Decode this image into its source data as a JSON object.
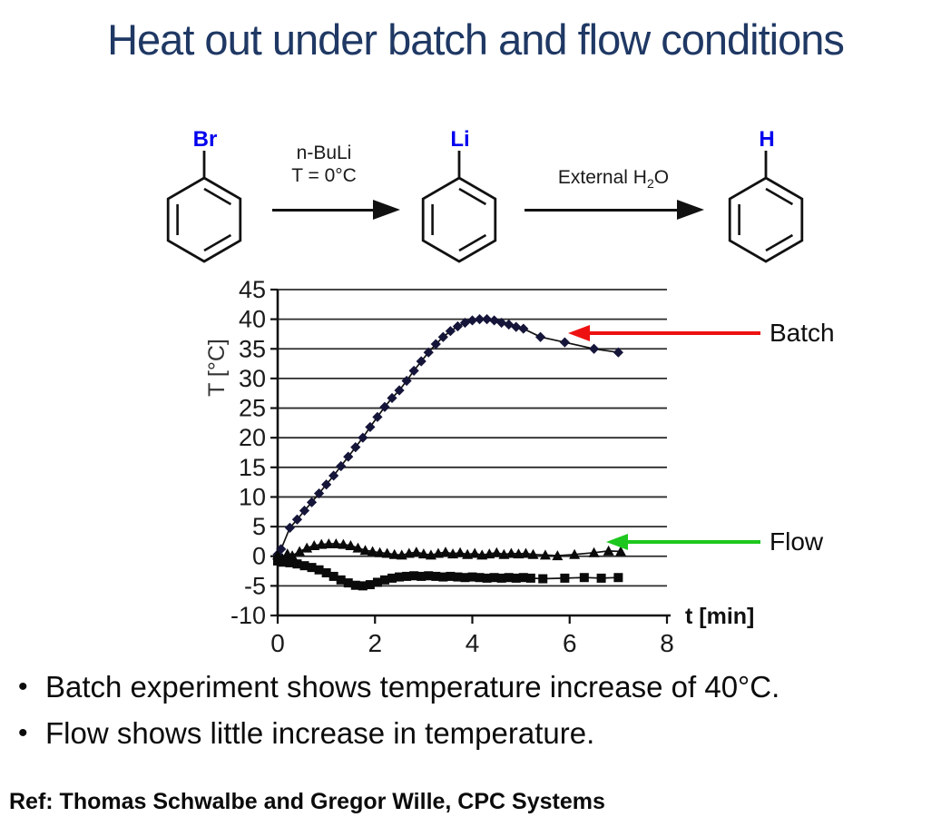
{
  "slide": {
    "title": "Heat out under batch and flow conditions",
    "title_color": "#1f3864",
    "bullet_char": "•",
    "bullets": [
      "Batch experiment shows temperature increase of 40°C.",
      "Flow shows little increase in temperature."
    ],
    "reference": "Ref: Thomas Schwalbe and Gregor Wille, CPC Systems"
  },
  "reaction": {
    "atom_color": "#0000ee",
    "molecules": [
      {
        "label": "Br"
      },
      {
        "label": "Li"
      },
      {
        "label": "H"
      }
    ],
    "step1": {
      "line1": "n-BuLi",
      "line2": "T = 0°C"
    },
    "step2": {
      "pre": "External H",
      "sub": "2",
      "post": "O"
    }
  },
  "chart_data": {
    "type": "line",
    "title": "",
    "xlabel": "t [min]",
    "ylabel": "T [°C]",
    "xlim": [
      0,
      8
    ],
    "ylim": [
      -10,
      45
    ],
    "xticks": [
      0,
      2,
      4,
      6,
      8
    ],
    "yticks": [
      45,
      40,
      35,
      30,
      25,
      20,
      15,
      10,
      5,
      0,
      -5,
      -10
    ],
    "grid": "horizontal",
    "legend": "none",
    "series": [
      {
        "name": "Batch",
        "id": "batch-series",
        "marker": "diamond",
        "color": "#15153a",
        "points": [
          [
            0,
            0.3
          ],
          [
            0.07,
            1.2
          ],
          [
            0.25,
            4.8
          ],
          [
            0.4,
            6.2
          ],
          [
            0.55,
            7.7
          ],
          [
            0.7,
            9.1
          ],
          [
            0.85,
            10.6
          ],
          [
            1.0,
            12.1
          ],
          [
            1.15,
            13.6
          ],
          [
            1.3,
            15.2
          ],
          [
            1.45,
            16.8
          ],
          [
            1.6,
            18.4
          ],
          [
            1.75,
            20.0
          ],
          [
            1.9,
            21.8
          ],
          [
            2.05,
            23.5
          ],
          [
            2.2,
            25.2
          ],
          [
            2.35,
            26.7
          ],
          [
            2.5,
            28.0
          ],
          [
            2.65,
            29.6
          ],
          [
            2.8,
            31.3
          ],
          [
            2.95,
            32.9
          ],
          [
            3.1,
            34.4
          ],
          [
            3.25,
            35.8
          ],
          [
            3.4,
            37.0
          ],
          [
            3.55,
            38.0
          ],
          [
            3.7,
            38.8
          ],
          [
            3.85,
            39.4
          ],
          [
            4.0,
            39.8
          ],
          [
            4.15,
            40.0
          ],
          [
            4.3,
            40.0
          ],
          [
            4.45,
            39.8
          ],
          [
            4.6,
            39.4
          ],
          [
            4.75,
            39.1
          ],
          [
            4.9,
            38.7
          ],
          [
            5.05,
            38.4
          ],
          [
            5.4,
            37.0
          ],
          [
            5.9,
            36.1
          ],
          [
            6.5,
            35.0
          ],
          [
            7.0,
            34.4
          ]
        ]
      },
      {
        "name": "Flow",
        "id": "flow-series",
        "marker": "triangle",
        "color": "#0a0a0a",
        "points": [
          [
            0,
            0.2
          ],
          [
            0.1,
            -0.4
          ],
          [
            0.2,
            0.4
          ],
          [
            0.3,
            0.1
          ],
          [
            0.45,
            0.8
          ],
          [
            0.6,
            1.4
          ],
          [
            0.75,
            1.8
          ],
          [
            0.9,
            2.0
          ],
          [
            1.05,
            2.1
          ],
          [
            1.2,
            2.1
          ],
          [
            1.35,
            2.0
          ],
          [
            1.5,
            1.8
          ],
          [
            1.65,
            1.4
          ],
          [
            1.8,
            1.0
          ],
          [
            1.95,
            0.8
          ],
          [
            2.1,
            0.6
          ],
          [
            2.25,
            0.5
          ],
          [
            2.4,
            0.3
          ],
          [
            2.55,
            0.2
          ],
          [
            2.7,
            0.5
          ],
          [
            2.85,
            0.7
          ],
          [
            3.0,
            0.4
          ],
          [
            3.15,
            0.2
          ],
          [
            3.3,
            0.5
          ],
          [
            3.45,
            0.7
          ],
          [
            3.6,
            0.4
          ],
          [
            3.75,
            0.6
          ],
          [
            3.9,
            0.3
          ],
          [
            4.05,
            0.5
          ],
          [
            4.2,
            0.2
          ],
          [
            4.35,
            0.4
          ],
          [
            4.5,
            0.6
          ],
          [
            4.65,
            0.3
          ],
          [
            4.8,
            0.5
          ],
          [
            4.95,
            0.4
          ],
          [
            5.1,
            0.5
          ],
          [
            5.25,
            0.3
          ],
          [
            5.5,
            0.2
          ],
          [
            5.75,
            0.1
          ],
          [
            6.1,
            0.3
          ],
          [
            6.5,
            0.6
          ],
          [
            6.8,
            0.9
          ],
          [
            7.05,
            0.8
          ]
        ]
      },
      {
        "name": "",
        "id": "square-series",
        "marker": "square",
        "color": "#0a0a0a",
        "points": [
          [
            0,
            -0.8
          ],
          [
            0.1,
            -1.0
          ],
          [
            0.25,
            -1.1
          ],
          [
            0.4,
            -1.3
          ],
          [
            0.55,
            -1.6
          ],
          [
            0.7,
            -1.9
          ],
          [
            0.85,
            -2.3
          ],
          [
            1.0,
            -2.8
          ],
          [
            1.15,
            -3.4
          ],
          [
            1.3,
            -4.0
          ],
          [
            1.45,
            -4.5
          ],
          [
            1.6,
            -4.9
          ],
          [
            1.75,
            -5.0
          ],
          [
            1.9,
            -4.8
          ],
          [
            2.05,
            -4.4
          ],
          [
            2.2,
            -4.0
          ],
          [
            2.35,
            -3.7
          ],
          [
            2.5,
            -3.5
          ],
          [
            2.65,
            -3.4
          ],
          [
            2.8,
            -3.3
          ],
          [
            2.95,
            -3.4
          ],
          [
            3.1,
            -3.3
          ],
          [
            3.25,
            -3.4
          ],
          [
            3.4,
            -3.5
          ],
          [
            3.55,
            -3.4
          ],
          [
            3.7,
            -3.5
          ],
          [
            3.85,
            -3.6
          ],
          [
            4.0,
            -3.5
          ],
          [
            4.15,
            -3.6
          ],
          [
            4.3,
            -3.7
          ],
          [
            4.45,
            -3.6
          ],
          [
            4.6,
            -3.7
          ],
          [
            4.75,
            -3.6
          ],
          [
            4.9,
            -3.7
          ],
          [
            5.05,
            -3.6
          ],
          [
            5.2,
            -3.7
          ],
          [
            5.45,
            -3.8
          ],
          [
            5.9,
            -3.7
          ],
          [
            6.3,
            -3.6
          ],
          [
            6.65,
            -3.7
          ],
          [
            7.0,
            -3.6
          ]
        ]
      }
    ],
    "annotations": [
      {
        "label": "Batch",
        "color": "#ee1111",
        "direction": "left"
      },
      {
        "label": "Flow",
        "color": "#1dc71d",
        "direction": "left"
      }
    ]
  }
}
